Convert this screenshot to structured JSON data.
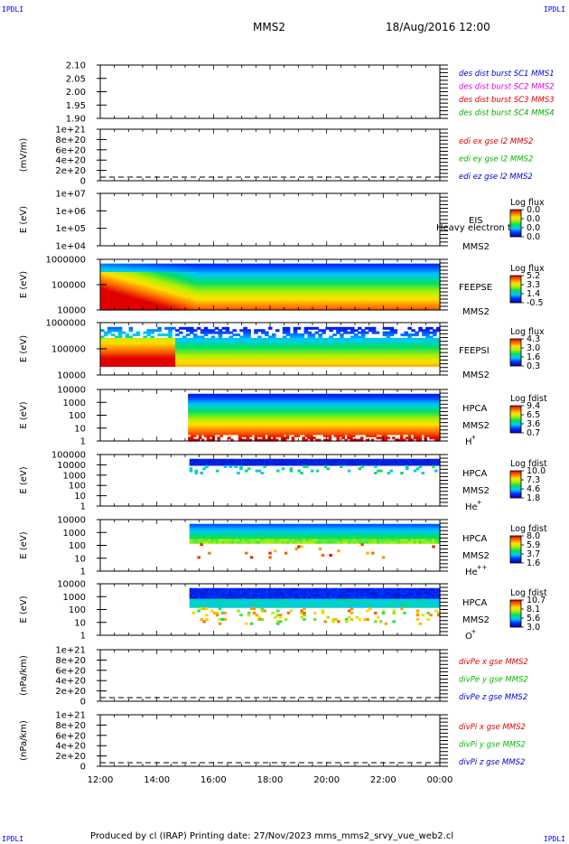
{
  "page": {
    "corner_tag": "IPDLI",
    "title": "MMS2",
    "datetime": "18/Aug/2016 12:00",
    "footer": "Produced by cl (IRAP)   Printing date: 27/Nov/2023   mms_mms2_srvy_vue_web2.cl"
  },
  "colors": {
    "mms1": "#0000cc",
    "mms2": "#dd00dd",
    "mms3": "#dd0000",
    "mms4": "#00aa00",
    "x": "#dd0000",
    "y": "#00bb00",
    "z": "#0000cc"
  },
  "chart_data": {
    "type": "heatmap",
    "time_axis": {
      "ticks": [
        "12:00",
        "14:00",
        "16:00",
        "18:00",
        "20:00",
        "22:00",
        "00:00"
      ],
      "range_hours": [
        12,
        24
      ]
    },
    "panels": [
      {
        "id": "des",
        "kind": "lines",
        "ylabel": "",
        "yticks": [
          "2.10",
          "2.05",
          "2.00",
          "1.95",
          "1.90"
        ],
        "legend": [
          {
            "text": "des dist burst SC1 MMS1",
            "color": "#0000cc"
          },
          {
            "text": "des dist burst SC2 MMS2",
            "color": "#dd00dd"
          },
          {
            "text": "des dist burst SC3 MMS3",
            "color": "#dd0000"
          },
          {
            "text": "des dist burst SC4 MMS4",
            "color": "#00aa00"
          }
        ]
      },
      {
        "id": "edi",
        "kind": "lines",
        "ylabel": "(mV/m)",
        "yticks": [
          "1e+21",
          "8e+20",
          "6e+20",
          "4e+20",
          "2e+20",
          "0"
        ],
        "dashed_zero": true,
        "legend": [
          {
            "text": "edi ex gse l2 MMS2",
            "color": "#dd0000"
          },
          {
            "text": "edi ey gse l2 MMS2",
            "color": "#00bb00"
          },
          {
            "text": "edi ez gse l2 MMS2",
            "color": "#0000cc"
          }
        ]
      },
      {
        "id": "eis",
        "kind": "spectrogram",
        "ylabel": "E (eV)",
        "yticks": [
          "1e+07",
          "1e+06",
          "1e+05",
          "1e+04"
        ],
        "label_lines": [
          "EIS",
          "Heavy electron tof",
          "MMS2"
        ],
        "colorbar": {
          "title": "Log flux",
          "ticks": [
            "0.0",
            "0.0",
            "0.0",
            "0.0"
          ]
        },
        "data": "empty"
      },
      {
        "id": "feepse",
        "kind": "spectrogram",
        "ylabel": "E (eV)",
        "yticks": [
          "1000000",
          "100000",
          "10000"
        ],
        "label_lines": [
          "FEEPSE",
          "MMS2"
        ],
        "colorbar": {
          "title": "Log flux",
          "ticks": [
            "5.2",
            "3.3",
            "1.4",
            "-0.5"
          ]
        },
        "data_start_hour": 12.0
      },
      {
        "id": "feepsi",
        "kind": "spectrogram",
        "ylabel": "E (eV)",
        "yticks": [
          "1000000",
          "100000",
          "10000"
        ],
        "label_lines": [
          "FEEPSI",
          "MMS2"
        ],
        "colorbar": {
          "title": "Log flux",
          "ticks": [
            "4.3",
            "3.0",
            "1.6",
            "0.3"
          ]
        },
        "data_start_hour": 12.0
      },
      {
        "id": "hpca_h",
        "kind": "spectrogram",
        "ylabel": "E (eV)",
        "yticks": [
          "10000",
          "1000",
          "100",
          "10",
          "1"
        ],
        "label_lines": [
          "HPCA",
          "MMS2"
        ],
        "species": "H",
        "species_sup": "+",
        "colorbar": {
          "title": "Log fdist",
          "ticks": [
            "9.4",
            "6.5",
            "3.6",
            "0.7"
          ]
        },
        "data_start_hour": 15.1
      },
      {
        "id": "hpca_he",
        "kind": "spectrogram",
        "ylabel": "E (eV)",
        "yticks": [
          "100000",
          "10000",
          "1000",
          "100",
          "10",
          "1"
        ],
        "label_lines": [
          "HPCA",
          "MMS2"
        ],
        "species": "He",
        "species_sup": "+",
        "colorbar": {
          "title": "Log fdist",
          "ticks": [
            "10.0",
            "7.3",
            "4.6",
            "1.8"
          ]
        },
        "data_start_hour": 15.15
      },
      {
        "id": "hpca_hepp",
        "kind": "spectrogram",
        "ylabel": "E (eV)",
        "yticks": [
          "10000",
          "1000",
          "100",
          "10",
          "1"
        ],
        "label_lines": [
          "HPCA",
          "MMS2"
        ],
        "species": "He",
        "species_sup": "++",
        "colorbar": {
          "title": "Log fdist",
          "ticks": [
            "8.0",
            "5.9",
            "3.7",
            "1.6"
          ]
        },
        "data_start_hour": 15.15
      },
      {
        "id": "hpca_o",
        "kind": "spectrogram",
        "ylabel": "E (eV)",
        "yticks": [
          "10000",
          "1000",
          "100",
          "10",
          "1"
        ],
        "label_lines": [
          "HPCA",
          "MMS2"
        ],
        "species": "O",
        "species_sup": "+",
        "colorbar": {
          "title": "Log fdist",
          "ticks": [
            "10.7",
            "8.1",
            "5.6",
            "3.0"
          ]
        },
        "data_start_hour": 15.15
      },
      {
        "id": "divpe",
        "kind": "lines",
        "ylabel": "(nPa/km)",
        "yticks": [
          "1e+21",
          "8e+20",
          "6e+20",
          "4e+20",
          "2e+20",
          "0"
        ],
        "dashed_zero": true,
        "legend": [
          {
            "text": "divPe x gse MMS2",
            "color": "#dd0000"
          },
          {
            "text": "divPe y gse MMS2",
            "color": "#00bb00"
          },
          {
            "text": "divPe z gse MMS2",
            "color": "#0000cc"
          }
        ]
      },
      {
        "id": "divpi",
        "kind": "lines",
        "ylabel": "(nPa/km)",
        "yticks": [
          "1e+21",
          "8e+20",
          "6e+20",
          "4e+20",
          "2e+20",
          "0"
        ],
        "dashed_zero": true,
        "legend": [
          {
            "text": "divPi x gse MMS2",
            "color": "#dd0000"
          },
          {
            "text": "divPi y gse MMS2",
            "color": "#00bb00"
          },
          {
            "text": "divPi z gse MMS2",
            "color": "#0000cc"
          }
        ]
      }
    ]
  }
}
